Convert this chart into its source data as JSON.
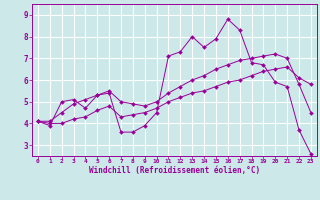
{
  "xlabel": "Windchill (Refroidissement éolien,°C)",
  "background_color": "#cce8e8",
  "line_color": "#990099",
  "grid_color": "#ffffff",
  "ylim": [
    2.5,
    9.5
  ],
  "xlim": [
    -0.5,
    23.5
  ],
  "yticks": [
    3,
    4,
    5,
    6,
    7,
    8,
    9
  ],
  "xticks": [
    0,
    1,
    2,
    3,
    4,
    5,
    6,
    7,
    8,
    9,
    10,
    11,
    12,
    13,
    14,
    15,
    16,
    17,
    18,
    19,
    20,
    21,
    22,
    23
  ],
  "series": [
    [
      4.1,
      3.9,
      5.0,
      5.1,
      4.7,
      5.3,
      5.4,
      3.6,
      3.6,
      3.9,
      4.5,
      7.1,
      7.3,
      8.0,
      7.5,
      7.9,
      8.8,
      8.3,
      6.8,
      6.7,
      5.9,
      5.7,
      3.7,
      2.6
    ],
    [
      4.1,
      4.0,
      4.0,
      4.2,
      4.3,
      4.6,
      4.8,
      4.3,
      4.4,
      4.5,
      4.7,
      5.0,
      5.2,
      5.4,
      5.5,
      5.7,
      5.9,
      6.0,
      6.2,
      6.4,
      6.5,
      6.6,
      6.1,
      5.8
    ],
    [
      4.1,
      4.1,
      4.5,
      4.9,
      5.1,
      5.3,
      5.5,
      5.0,
      4.9,
      4.8,
      5.0,
      5.4,
      5.7,
      6.0,
      6.2,
      6.5,
      6.7,
      6.9,
      7.0,
      7.1,
      7.2,
      7.0,
      5.8,
      4.5
    ]
  ],
  "xticklabels": [
    "0",
    "1",
    "2",
    "3",
    "4",
    "5",
    "6",
    "7",
    "8",
    "9",
    "10",
    "11",
    "12",
    "13",
    "14",
    "15",
    "16",
    "17",
    "18",
    "19",
    "20",
    "21",
    "22",
    "23"
  ]
}
